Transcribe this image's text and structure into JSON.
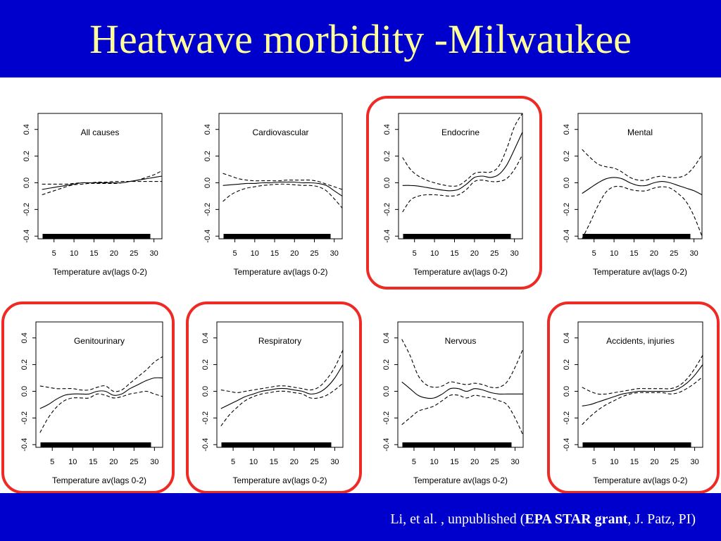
{
  "slide": {
    "title": "Heatwave morbidity -Milwaukee",
    "citation": {
      "prefix": "Li, et al. , unpublished   (",
      "grant": "EPA STAR grant",
      "suffix": ",  J. Patz, PI)"
    }
  },
  "colors": {
    "header_background": "#0000cc",
    "title_text": "#ffff99",
    "highlight_border": "#ee2a24"
  },
  "chart_data": [
    {
      "type": "line",
      "title": "All causes",
      "highlighted": false,
      "xlabel": "Temperature av(lags 0-2)",
      "ylabel": "",
      "xlim": [
        1,
        32
      ],
      "ylim": [
        -0.42,
        0.52
      ],
      "xticks": [
        5,
        10,
        15,
        20,
        25,
        30
      ],
      "yticks": [
        -0.4,
        -0.2,
        0.0,
        0.2,
        0.4
      ],
      "x": [
        2,
        4,
        6,
        8,
        10,
        12,
        14,
        16,
        18,
        20,
        22,
        24,
        26,
        28,
        30,
        32
      ],
      "series": [
        {
          "style": "solid",
          "values": [
            -0.05,
            -0.04,
            -0.03,
            -0.02,
            -0.01,
            0.0,
            0.0,
            0.0,
            0.0,
            0.0,
            0.0,
            0.01,
            0.02,
            0.03,
            0.04,
            0.05
          ]
        },
        {
          "style": "dashed",
          "values": [
            -0.01,
            -0.01,
            -0.01,
            -0.01,
            -0.005,
            0.0,
            0.0,
            0.005,
            0.005,
            0.01,
            0.01,
            0.01,
            0.01,
            0.01,
            0.01,
            0.01
          ]
        },
        {
          "style": "dashed",
          "values": [
            -0.09,
            -0.07,
            -0.05,
            -0.03,
            -0.015,
            -0.01,
            -0.005,
            -0.005,
            -0.005,
            -0.005,
            0.0,
            0.01,
            0.02,
            0.04,
            0.06,
            0.09
          ]
        }
      ]
    },
    {
      "type": "line",
      "title": "Cardiovascular",
      "highlighted": false,
      "xlabel": "Temperature av(lags 0-2)",
      "ylabel": "",
      "xlim": [
        1,
        32
      ],
      "ylim": [
        -0.42,
        0.52
      ],
      "xticks": [
        5,
        10,
        15,
        20,
        25,
        30
      ],
      "yticks": [
        -0.4,
        -0.2,
        0.0,
        0.2,
        0.4
      ],
      "x": [
        2,
        4,
        6,
        8,
        10,
        12,
        14,
        16,
        18,
        20,
        22,
        24,
        26,
        28,
        30,
        32
      ],
      "series": [
        {
          "style": "solid",
          "values": [
            -0.02,
            -0.015,
            -0.01,
            -0.005,
            -0.005,
            0.0,
            0.0,
            0.005,
            0.005,
            0.005,
            0.0,
            0.0,
            -0.005,
            -0.02,
            -0.06,
            -0.1
          ]
        },
        {
          "style": "dashed",
          "values": [
            0.07,
            0.05,
            0.03,
            0.02,
            0.015,
            0.015,
            0.015,
            0.015,
            0.02,
            0.02,
            0.02,
            0.02,
            0.01,
            -0.01,
            -0.03,
            -0.05
          ]
        },
        {
          "style": "dashed",
          "values": [
            -0.14,
            -0.09,
            -0.06,
            -0.04,
            -0.03,
            -0.02,
            -0.015,
            -0.01,
            -0.01,
            -0.015,
            -0.02,
            -0.02,
            -0.03,
            -0.06,
            -0.12,
            -0.19
          ]
        }
      ]
    },
    {
      "type": "line",
      "title": "Endocrine",
      "highlighted": true,
      "xlabel": "Temperature av(lags 0-2)",
      "ylabel": "",
      "xlim": [
        1,
        32
      ],
      "ylim": [
        -0.42,
        0.52
      ],
      "xticks": [
        5,
        10,
        15,
        20,
        25,
        30
      ],
      "yticks": [
        -0.4,
        -0.2,
        0.0,
        0.2,
        0.4
      ],
      "x": [
        2,
        4,
        6,
        8,
        10,
        12,
        14,
        16,
        18,
        20,
        22,
        24,
        26,
        28,
        30,
        32
      ],
      "series": [
        {
          "style": "solid",
          "values": [
            -0.02,
            -0.02,
            -0.025,
            -0.035,
            -0.045,
            -0.055,
            -0.06,
            -0.05,
            -0.01,
            0.04,
            0.05,
            0.04,
            0.06,
            0.13,
            0.25,
            0.38
          ]
        },
        {
          "style": "dashed",
          "values": [
            0.19,
            0.1,
            0.05,
            0.02,
            0.0,
            -0.015,
            -0.025,
            -0.02,
            0.02,
            0.07,
            0.08,
            0.08,
            0.12,
            0.25,
            0.42,
            0.52
          ]
        },
        {
          "style": "dashed",
          "values": [
            -0.22,
            -0.13,
            -0.1,
            -0.09,
            -0.09,
            -0.095,
            -0.1,
            -0.09,
            -0.05,
            0.01,
            0.02,
            0.01,
            0.01,
            0.03,
            0.1,
            0.21
          ]
        }
      ]
    },
    {
      "type": "line",
      "title": "Mental",
      "highlighted": false,
      "xlabel": "Temperature av(lags 0-2)",
      "ylabel": "",
      "xlim": [
        1,
        32
      ],
      "ylim": [
        -0.42,
        0.52
      ],
      "xticks": [
        5,
        10,
        15,
        20,
        25,
        30
      ],
      "yticks": [
        -0.4,
        -0.2,
        0.0,
        0.2,
        0.4
      ],
      "x": [
        2,
        4,
        6,
        8,
        10,
        12,
        14,
        16,
        18,
        20,
        22,
        24,
        26,
        28,
        30,
        32
      ],
      "series": [
        {
          "style": "solid",
          "values": [
            -0.08,
            -0.04,
            0.0,
            0.03,
            0.04,
            0.03,
            0.0,
            -0.02,
            -0.02,
            0.0,
            0.01,
            0.0,
            -0.02,
            -0.04,
            -0.06,
            -0.09
          ]
        },
        {
          "style": "dashed",
          "values": [
            0.25,
            0.19,
            0.14,
            0.12,
            0.11,
            0.08,
            0.04,
            0.02,
            0.02,
            0.04,
            0.05,
            0.04,
            0.04,
            0.06,
            0.12,
            0.21
          ]
        },
        {
          "style": "dashed",
          "values": [
            -0.42,
            -0.3,
            -0.17,
            -0.07,
            -0.03,
            -0.03,
            -0.05,
            -0.06,
            -0.06,
            -0.04,
            -0.03,
            -0.04,
            -0.08,
            -0.14,
            -0.25,
            -0.4
          ]
        }
      ]
    },
    {
      "type": "line",
      "title": "Genitourinary",
      "highlighted": true,
      "xlabel": "Temperature av(lags 0-2)",
      "ylabel": "",
      "xlim": [
        1,
        32
      ],
      "ylim": [
        -0.42,
        0.52
      ],
      "xticks": [
        5,
        10,
        15,
        20,
        25,
        30
      ],
      "yticks": [
        -0.4,
        -0.2,
        0.0,
        0.2,
        0.4
      ],
      "x": [
        2,
        4,
        6,
        8,
        10,
        12,
        14,
        16,
        18,
        20,
        22,
        24,
        26,
        28,
        30,
        32
      ],
      "series": [
        {
          "style": "solid",
          "values": [
            -0.13,
            -0.1,
            -0.06,
            -0.03,
            -0.02,
            -0.02,
            -0.02,
            0.0,
            0.0,
            -0.03,
            -0.02,
            0.02,
            0.05,
            0.08,
            0.1,
            0.1
          ]
        },
        {
          "style": "dashed",
          "values": [
            0.04,
            0.03,
            0.02,
            0.02,
            0.02,
            0.01,
            0.01,
            0.03,
            0.04,
            0.0,
            0.01,
            0.06,
            0.11,
            0.16,
            0.22,
            0.26
          ]
        },
        {
          "style": "dashed",
          "values": [
            -0.31,
            -0.2,
            -0.12,
            -0.07,
            -0.05,
            -0.05,
            -0.05,
            -0.02,
            -0.03,
            -0.05,
            -0.04,
            -0.02,
            -0.01,
            0.0,
            -0.02,
            -0.04
          ]
        }
      ]
    },
    {
      "type": "line",
      "title": "Respiratory",
      "highlighted": true,
      "xlabel": "Temperature av(lags 0-2)",
      "ylabel": "",
      "xlim": [
        1,
        32
      ],
      "ylim": [
        -0.42,
        0.52
      ],
      "xticks": [
        5,
        10,
        15,
        20,
        25,
        30
      ],
      "yticks": [
        -0.4,
        -0.2,
        0.0,
        0.2,
        0.4
      ],
      "x": [
        2,
        4,
        6,
        8,
        10,
        12,
        14,
        16,
        18,
        20,
        22,
        24,
        26,
        28,
        30,
        32
      ],
      "series": [
        {
          "style": "solid",
          "values": [
            -0.13,
            -0.1,
            -0.07,
            -0.04,
            -0.02,
            0.0,
            0.01,
            0.02,
            0.02,
            0.01,
            0.0,
            -0.02,
            -0.01,
            0.03,
            0.1,
            0.2
          ]
        },
        {
          "style": "dashed",
          "values": [
            0.01,
            0.0,
            -0.01,
            0.0,
            0.01,
            0.02,
            0.03,
            0.04,
            0.04,
            0.03,
            0.02,
            0.01,
            0.03,
            0.09,
            0.18,
            0.31
          ]
        },
        {
          "style": "dashed",
          "values": [
            -0.26,
            -0.18,
            -0.12,
            -0.07,
            -0.04,
            -0.02,
            -0.01,
            0.0,
            0.0,
            -0.01,
            -0.02,
            -0.05,
            -0.05,
            -0.03,
            0.01,
            0.06
          ]
        }
      ]
    },
    {
      "type": "line",
      "title": "Nervous",
      "highlighted": false,
      "xlabel": "Temperature av(lags 0-2)",
      "ylabel": "",
      "xlim": [
        1,
        32
      ],
      "ylim": [
        -0.42,
        0.52
      ],
      "xticks": [
        5,
        10,
        15,
        20,
        25,
        30
      ],
      "yticks": [
        -0.4,
        -0.2,
        0.0,
        0.2,
        0.4
      ],
      "x": [
        2,
        4,
        6,
        8,
        10,
        12,
        14,
        16,
        18,
        20,
        22,
        24,
        26,
        28,
        30,
        32
      ],
      "series": [
        {
          "style": "solid",
          "values": [
            0.07,
            0.02,
            -0.03,
            -0.05,
            -0.05,
            -0.02,
            0.02,
            0.02,
            0.0,
            0.02,
            0.01,
            -0.01,
            -0.02,
            -0.02,
            -0.02,
            -0.02
          ]
        },
        {
          "style": "dashed",
          "values": [
            0.39,
            0.27,
            0.12,
            0.05,
            0.03,
            0.04,
            0.07,
            0.06,
            0.05,
            0.06,
            0.05,
            0.03,
            0.03,
            0.07,
            0.18,
            0.32
          ]
        },
        {
          "style": "dashed",
          "values": [
            -0.25,
            -0.2,
            -0.15,
            -0.13,
            -0.11,
            -0.07,
            -0.03,
            -0.03,
            -0.05,
            -0.03,
            -0.04,
            -0.05,
            -0.07,
            -0.1,
            -0.2,
            -0.33
          ]
        }
      ]
    },
    {
      "type": "line",
      "title": "Accidents, injuries",
      "highlighted": true,
      "xlabel": "Temperature av(lags 0-2)",
      "ylabel": "",
      "xlim": [
        1,
        32
      ],
      "ylim": [
        -0.42,
        0.52
      ],
      "xticks": [
        5,
        10,
        15,
        20,
        25,
        30
      ],
      "yticks": [
        -0.4,
        -0.2,
        0.0,
        0.2,
        0.4
      ],
      "x": [
        2,
        4,
        6,
        8,
        10,
        12,
        14,
        16,
        18,
        20,
        22,
        24,
        26,
        28,
        30,
        32
      ],
      "series": [
        {
          "style": "solid",
          "values": [
            -0.11,
            -0.1,
            -0.08,
            -0.06,
            -0.04,
            -0.02,
            -0.01,
            0.0,
            0.0,
            0.0,
            0.0,
            0.0,
            0.02,
            0.06,
            0.12,
            0.2
          ]
        },
        {
          "style": "dashed",
          "values": [
            0.03,
            0.0,
            -0.02,
            -0.02,
            -0.01,
            0.0,
            0.01,
            0.02,
            0.02,
            0.02,
            0.02,
            0.02,
            0.04,
            0.09,
            0.17,
            0.27
          ]
        },
        {
          "style": "dashed",
          "values": [
            -0.25,
            -0.19,
            -0.14,
            -0.1,
            -0.07,
            -0.04,
            -0.02,
            -0.01,
            -0.01,
            -0.01,
            -0.01,
            -0.02,
            -0.01,
            0.02,
            0.06,
            0.11
          ]
        }
      ]
    }
  ]
}
